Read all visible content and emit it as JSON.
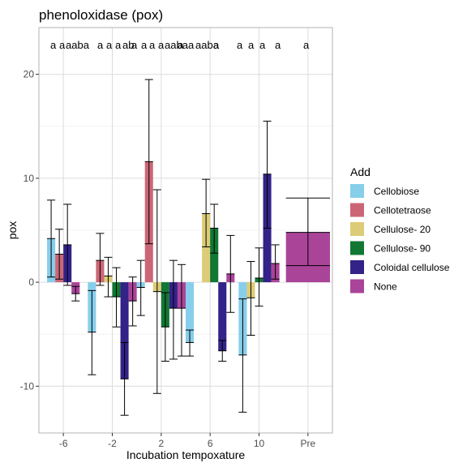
{
  "chart_data": {
    "type": "bar",
    "title": "phenoloxidase (pox)",
    "xlabel": "Incubation tempoxature",
    "ylabel": "pox",
    "categories": [
      "-6",
      "-2",
      "2",
      "6",
      "10",
      "Pre"
    ],
    "ylim": [
      -14.5,
      24.5
    ],
    "yticks": [
      -10,
      0,
      10,
      20
    ],
    "grid": true,
    "legend": {
      "title": "Add",
      "position": "right"
    },
    "series": [
      {
        "name": "Cellobiose",
        "color": "#87CEEB",
        "values": [
          4.2,
          -4.8,
          -0.5,
          -5.8,
          -7.0,
          null
        ],
        "ci": [
          [
            0.5,
            7.9
          ],
          [
            -8.9,
            -0.8
          ],
          [
            -3.2,
            2.1
          ],
          [
            -7.1,
            -4.6
          ],
          [
            -12.5,
            -1.6
          ],
          null
        ],
        "letters": [
          "a",
          "a",
          "a",
          "a",
          "a",
          null
        ]
      },
      {
        "name": "Cellotetraose",
        "color": "#CC6677",
        "values": [
          2.7,
          2.1,
          11.6,
          0.0,
          null,
          null
        ],
        "ci": [
          [
            0.3,
            5.1
          ],
          [
            -0.3,
            4.7
          ],
          [
            3.7,
            19.5
          ],
          [
            null,
            null
          ],
          null,
          null
        ],
        "letters": [
          "a",
          "a",
          "a",
          "a",
          null,
          null
        ]
      },
      {
        "name": "Cellulose- 20",
        "color": "#DDCC77",
        "values": [
          null,
          0.6,
          -0.9,
          6.6,
          -1.5,
          null
        ],
        "ci": [
          null,
          [
            -1.4,
            2.4
          ],
          [
            -10.7,
            8.9
          ],
          [
            3.4,
            9.9
          ],
          [
            -5.1,
            2.0
          ],
          null
        ],
        "letters": [
          null,
          "a",
          "ab",
          "ab",
          "a",
          null
        ]
      },
      {
        "name": "Cellulose- 90",
        "color": "#117733",
        "values": [
          null,
          -1.4,
          -4.3,
          5.2,
          0.4,
          null
        ],
        "ci": [
          null,
          [
            -4.3,
            1.4
          ],
          [
            -7.6,
            -1.0
          ],
          [
            2.8,
            7.5
          ],
          [
            -2.3,
            3.3
          ],
          null
        ],
        "letters": [
          null,
          "b",
          "a",
          "a",
          "a",
          null
        ]
      },
      {
        "name": "Coloidal cellulose",
        "color": "#332288",
        "values": [
          3.6,
          -9.3,
          -2.5,
          -6.6,
          10.4,
          null
        ],
        "ci": [
          [
            -0.3,
            7.5
          ],
          [
            -12.8,
            -5.8
          ],
          [
            -7.4,
            2.1
          ],
          [
            -7.6,
            -5.6
          ],
          [
            5.2,
            15.5
          ],
          null
        ],
        "letters": [
          "ab",
          "ab",
          "ab",
          "aba",
          "a",
          null
        ]
      },
      {
        "name": "None",
        "color": "#AA4499",
        "values": [
          -1.1,
          -1.8,
          -2.5,
          0.8,
          1.8,
          4.8
        ],
        "ci": [
          [
            -1.8,
            -0.4
          ],
          [
            -4.2,
            0.5
          ],
          [
            -7.1,
            1.7
          ],
          [
            -2.9,
            4.5
          ],
          [
            0.3,
            3.6
          ],
          [
            1.6,
            8.1
          ]
        ],
        "letters": [
          "a",
          "a",
          "a",
          "a",
          "a",
          "a"
        ]
      }
    ],
    "annotation_labels": [
      "a",
      "a",
      "aaba",
      "a",
      "a",
      "a",
      "ab",
      "a",
      "a",
      "a",
      "a",
      "aaba",
      "a",
      "a",
      "aaba",
      "a",
      "a",
      "a",
      "a",
      "a",
      "a"
    ]
  }
}
